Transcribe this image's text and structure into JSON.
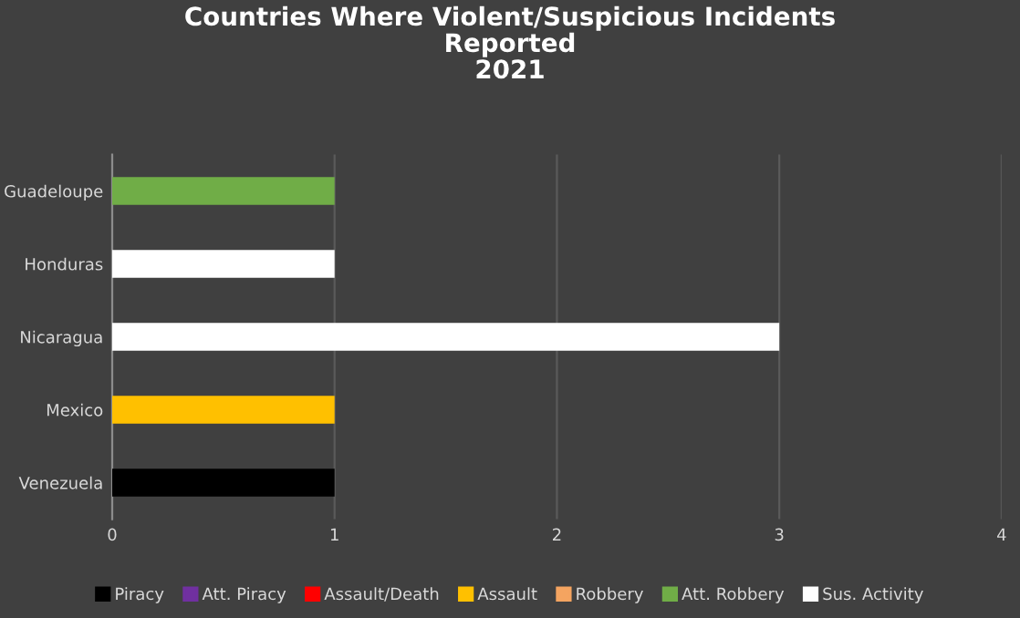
{
  "chart_data": {
    "type": "bar",
    "title": "Countries Where Violent/Suspicious Incidents\nReported\n2021",
    "orientation": "horizontal",
    "categories": [
      "Guadeloupe",
      "Honduras",
      "Nicaragua",
      "Mexico",
      "Venezuela"
    ],
    "series": [
      {
        "name": "Piracy",
        "color": "#000000",
        "values": [
          null,
          null,
          null,
          null,
          1
        ]
      },
      {
        "name": "Att. Piracy",
        "color": "#7030a0",
        "values": [
          null,
          null,
          null,
          null,
          null
        ]
      },
      {
        "name": "Assault/Death",
        "color": "#ff0000",
        "values": [
          null,
          null,
          null,
          null,
          null
        ]
      },
      {
        "name": "Assault",
        "color": "#ffc000",
        "values": [
          null,
          null,
          null,
          1,
          null
        ]
      },
      {
        "name": "Robbery",
        "color": "#f4a460",
        "values": [
          null,
          null,
          null,
          null,
          null
        ]
      },
      {
        "name": "Att. Robbery",
        "color": "#70ad47",
        "values": [
          1,
          null,
          null,
          null,
          null
        ]
      },
      {
        "name": "Sus. Activity",
        "color": "#ffffff",
        "values": [
          null,
          1,
          3,
          null,
          null
        ]
      }
    ],
    "xlim": [
      0,
      4
    ],
    "xticks": [
      0,
      1,
      2,
      3,
      4
    ],
    "grid": "x",
    "legend": "bottom"
  }
}
